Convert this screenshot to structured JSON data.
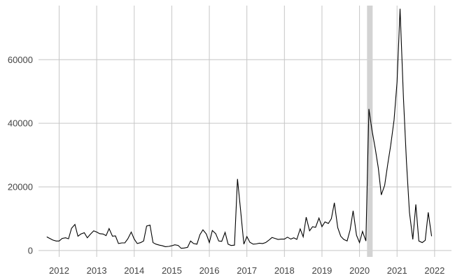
{
  "chart_data": {
    "type": "line",
    "title": "",
    "xlabel": "",
    "ylabel": "",
    "xlim": [
      2011.45,
      2022.45
    ],
    "ylim": [
      -2000,
      77000
    ],
    "grid": true,
    "x_ticks": [
      {
        "value": 2012,
        "label": "2012"
      },
      {
        "value": 2013,
        "label": "2013"
      },
      {
        "value": 2014,
        "label": "2014"
      },
      {
        "value": 2015,
        "label": "2015"
      },
      {
        "value": 2016,
        "label": "2016"
      },
      {
        "value": 2017,
        "label": "2017"
      },
      {
        "value": 2018,
        "label": "2018"
      },
      {
        "value": 2019,
        "label": "2019"
      },
      {
        "value": 2020,
        "label": "2020"
      },
      {
        "value": 2021,
        "label": "2021"
      },
      {
        "value": 2022,
        "label": "2022"
      }
    ],
    "y_ticks": [
      {
        "value": 0,
        "label": "0"
      },
      {
        "value": 20000,
        "label": "20000"
      },
      {
        "value": 40000,
        "label": "40000"
      },
      {
        "value": 60000,
        "label": "60000"
      }
    ],
    "highlight_band": {
      "x_start": 2020.2,
      "x_end": 2020.35,
      "color": "#d3d3d3"
    },
    "series": [
      {
        "color": "#000000",
        "points": [
          [
            2011.67,
            4300
          ],
          [
            2011.75,
            3800
          ],
          [
            2011.83,
            3300
          ],
          [
            2011.92,
            3000
          ],
          [
            2012.0,
            3000
          ],
          [
            2012.08,
            3800
          ],
          [
            2012.17,
            4000
          ],
          [
            2012.25,
            3700
          ],
          [
            2012.33,
            7000
          ],
          [
            2012.42,
            8200
          ],
          [
            2012.5,
            4500
          ],
          [
            2012.58,
            5200
          ],
          [
            2012.67,
            5600
          ],
          [
            2012.75,
            4000
          ],
          [
            2012.83,
            5100
          ],
          [
            2012.92,
            6200
          ],
          [
            2013.0,
            5800
          ],
          [
            2013.08,
            5300
          ],
          [
            2013.17,
            5200
          ],
          [
            2013.25,
            4700
          ],
          [
            2013.33,
            6900
          ],
          [
            2013.42,
            4500
          ],
          [
            2013.5,
            4600
          ],
          [
            2013.58,
            2200
          ],
          [
            2013.67,
            2400
          ],
          [
            2013.75,
            2400
          ],
          [
            2013.83,
            3700
          ],
          [
            2013.92,
            5800
          ],
          [
            2014.0,
            3600
          ],
          [
            2014.08,
            2200
          ],
          [
            2014.17,
            2500
          ],
          [
            2014.25,
            3000
          ],
          [
            2014.33,
            7700
          ],
          [
            2014.42,
            8000
          ],
          [
            2014.5,
            2500
          ],
          [
            2014.58,
            2000
          ],
          [
            2014.67,
            1700
          ],
          [
            2014.75,
            1500
          ],
          [
            2014.83,
            1200
          ],
          [
            2014.92,
            1300
          ],
          [
            2015.0,
            1500
          ],
          [
            2015.08,
            1800
          ],
          [
            2015.17,
            1600
          ],
          [
            2015.25,
            700
          ],
          [
            2015.33,
            800
          ],
          [
            2015.42,
            1000
          ],
          [
            2015.5,
            3000
          ],
          [
            2015.58,
            2200
          ],
          [
            2015.67,
            2000
          ],
          [
            2015.75,
            5000
          ],
          [
            2015.83,
            6500
          ],
          [
            2015.92,
            5200
          ],
          [
            2016.0,
            2500
          ],
          [
            2016.08,
            6300
          ],
          [
            2016.17,
            5300
          ],
          [
            2016.25,
            3000
          ],
          [
            2016.33,
            2900
          ],
          [
            2016.42,
            5700
          ],
          [
            2016.5,
            2000
          ],
          [
            2016.58,
            1600
          ],
          [
            2016.67,
            1700
          ],
          [
            2016.75,
            22500
          ],
          [
            2016.83,
            13000
          ],
          [
            2016.92,
            2000
          ],
          [
            2017.0,
            4400
          ],
          [
            2017.08,
            2600
          ],
          [
            2017.17,
            2000
          ],
          [
            2017.25,
            2100
          ],
          [
            2017.33,
            2300
          ],
          [
            2017.42,
            2200
          ],
          [
            2017.5,
            2500
          ],
          [
            2017.58,
            3200
          ],
          [
            2017.67,
            4100
          ],
          [
            2017.75,
            3800
          ],
          [
            2017.83,
            3500
          ],
          [
            2017.92,
            3600
          ],
          [
            2018.0,
            3600
          ],
          [
            2018.08,
            4200
          ],
          [
            2018.17,
            3600
          ],
          [
            2018.25,
            4000
          ],
          [
            2018.33,
            3500
          ],
          [
            2018.42,
            6800
          ],
          [
            2018.5,
            4300
          ],
          [
            2018.58,
            10500
          ],
          [
            2018.67,
            6200
          ],
          [
            2018.75,
            7500
          ],
          [
            2018.83,
            7300
          ],
          [
            2018.92,
            10200
          ],
          [
            2019.0,
            7500
          ],
          [
            2019.08,
            9000
          ],
          [
            2019.17,
            8500
          ],
          [
            2019.25,
            10000
          ],
          [
            2019.33,
            15000
          ],
          [
            2019.42,
            7200
          ],
          [
            2019.5,
            4500
          ],
          [
            2019.58,
            3500
          ],
          [
            2019.67,
            3000
          ],
          [
            2019.75,
            6500
          ],
          [
            2019.83,
            12500
          ],
          [
            2019.92,
            4800
          ],
          [
            2020.0,
            2500
          ],
          [
            2020.08,
            6000
          ],
          [
            2020.17,
            3000
          ],
          [
            2020.25,
            44500
          ],
          [
            2020.33,
            38000
          ],
          [
            2020.42,
            32000
          ],
          [
            2020.5,
            26000
          ],
          [
            2020.58,
            17500
          ],
          [
            2020.67,
            20500
          ],
          [
            2020.75,
            27000
          ],
          [
            2020.83,
            33000
          ],
          [
            2020.92,
            41000
          ],
          [
            2021.0,
            53000
          ],
          [
            2021.08,
            76000
          ],
          [
            2021.17,
            48000
          ],
          [
            2021.25,
            28000
          ],
          [
            2021.33,
            12000
          ],
          [
            2021.42,
            3500
          ],
          [
            2021.5,
            14500
          ],
          [
            2021.58,
            3000
          ],
          [
            2021.67,
            2500
          ],
          [
            2021.75,
            3200
          ],
          [
            2021.83,
            12000
          ],
          [
            2021.92,
            4500
          ]
        ]
      }
    ]
  }
}
